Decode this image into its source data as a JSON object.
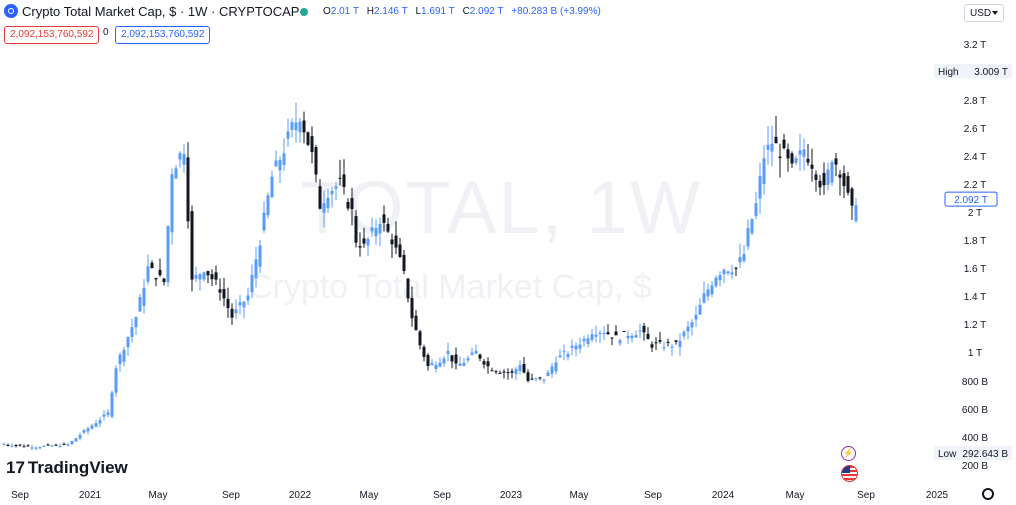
{
  "header": {
    "title": "Crypto Total Market Cap, $ · 1W · CRYPTOCAP",
    "ohlc": [
      {
        "key": "O",
        "value": "2.01 T"
      },
      {
        "key": "H",
        "value": "2.146 T"
      },
      {
        "key": "L",
        "value": "1.691 T"
      },
      {
        "key": "C",
        "value": "2.092 T"
      }
    ],
    "change": "+80.283 B (+3.99%)",
    "pill_red": "2,092,153,760,592",
    "pill_zero": "0",
    "pill_blue": "2,092,153,760,592",
    "currency": "USD"
  },
  "watermark": {
    "symbol": "TOTAL, 1W",
    "name": "Crypto Total Market Cap, $"
  },
  "brand": "TradingView",
  "colors": {
    "up": "#5b9cf6",
    "down": "#131722",
    "accent": "#2962ff",
    "high_low": "#131722"
  },
  "chart_data": {
    "type": "candlestick",
    "title": "Crypto Total Market Cap, $ · 1W · CRYPTOCAP",
    "y_ticks": [
      {
        "value": 200,
        "label": "200 B"
      },
      {
        "value": 400,
        "label": "400 B"
      },
      {
        "value": 600,
        "label": "600 B"
      },
      {
        "value": 800,
        "label": "800 B"
      },
      {
        "value": 1000,
        "label": "1 T"
      },
      {
        "value": 1200,
        "label": "1.2 T"
      },
      {
        "value": 1400,
        "label": "1.4 T"
      },
      {
        "value": 1600,
        "label": "1.6 T"
      },
      {
        "value": 1800,
        "label": "1.8 T"
      },
      {
        "value": 2000,
        "label": "2 T"
      },
      {
        "value": 2200,
        "label": "2.2 T"
      },
      {
        "value": 2400,
        "label": "2.4 T"
      },
      {
        "value": 2600,
        "label": "2.6 T"
      },
      {
        "value": 2800,
        "label": "2.8 T"
      },
      {
        "value": 3200,
        "label": "3.2 T"
      }
    ],
    "y_unit": "B USD",
    "ylim": [
      165,
      3310
    ],
    "x_ticks": [
      "Sep",
      "2021",
      "May",
      "Sep",
      "2022",
      "May",
      "Sep",
      "2023",
      "May",
      "Sep",
      "2024",
      "May",
      "Sep",
      "2025"
    ],
    "last_price": {
      "value": 2092,
      "label": "2.092 T"
    },
    "high": {
      "label": "High",
      "value": 3009,
      "text": "3.009 T"
    },
    "low": {
      "label": "Low",
      "value": 292.643,
      "text": "292.643 B"
    },
    "price_path": [
      [
        0,
        350
      ],
      [
        8,
        330
      ],
      [
        16,
        345
      ],
      [
        20,
        440
      ],
      [
        26,
        570
      ],
      [
        28,
        900
      ],
      [
        33,
        1250
      ],
      [
        36,
        1600
      ],
      [
        40,
        1500
      ],
      [
        42,
        2300
      ],
      [
        45,
        2460
      ],
      [
        47,
        1500
      ],
      [
        50,
        1600
      ],
      [
        54,
        1450
      ],
      [
        57,
        1250
      ],
      [
        61,
        1400
      ],
      [
        64,
        1800
      ],
      [
        67,
        2250
      ],
      [
        70,
        2450
      ],
      [
        72,
        2600
      ],
      [
        74,
        2700
      ],
      [
        77,
        2400
      ],
      [
        79,
        2050
      ],
      [
        81,
        2150
      ],
      [
        84,
        2200
      ],
      [
        87,
        2000
      ],
      [
        88,
        1800
      ],
      [
        90,
        1750
      ],
      [
        92,
        1850
      ],
      [
        94,
        1950
      ],
      [
        97,
        1800
      ],
      [
        99,
        1650
      ],
      [
        100,
        1550
      ],
      [
        102,
        1250
      ],
      [
        104,
        1050
      ],
      [
        106,
        900
      ],
      [
        109,
        950
      ],
      [
        111,
        1000
      ],
      [
        113,
        900
      ],
      [
        116,
        950
      ],
      [
        118,
        1000
      ],
      [
        121,
        900
      ],
      [
        124,
        870
      ],
      [
        127,
        850
      ],
      [
        129,
        920
      ],
      [
        131,
        800
      ],
      [
        135,
        820
      ],
      [
        136,
        850
      ],
      [
        138,
        950
      ],
      [
        141,
        1000
      ],
      [
        143,
        1050
      ],
      [
        145,
        1090
      ],
      [
        147,
        1150
      ],
      [
        150,
        1150
      ],
      [
        153,
        1100
      ],
      [
        156,
        1130
      ],
      [
        159,
        1150
      ],
      [
        162,
        1050
      ],
      [
        165,
        1050
      ],
      [
        168,
        1050
      ],
      [
        170,
        1130
      ],
      [
        173,
        1250
      ],
      [
        175,
        1400
      ],
      [
        178,
        1550
      ],
      [
        180,
        1600
      ],
      [
        183,
        1600
      ],
      [
        185,
        1700
      ],
      [
        186,
        1850
      ],
      [
        188,
        2050
      ],
      [
        190,
        2400
      ],
      [
        192,
        2500
      ],
      [
        195,
        2400
      ],
      [
        197,
        2300
      ],
      [
        200,
        2450
      ],
      [
        202,
        2350
      ],
      [
        205,
        2150
      ],
      [
        207,
        2400
      ],
      [
        209,
        2300
      ],
      [
        211,
        2100
      ],
      [
        212,
        2000
      ],
      [
        213,
        2092
      ]
    ]
  }
}
